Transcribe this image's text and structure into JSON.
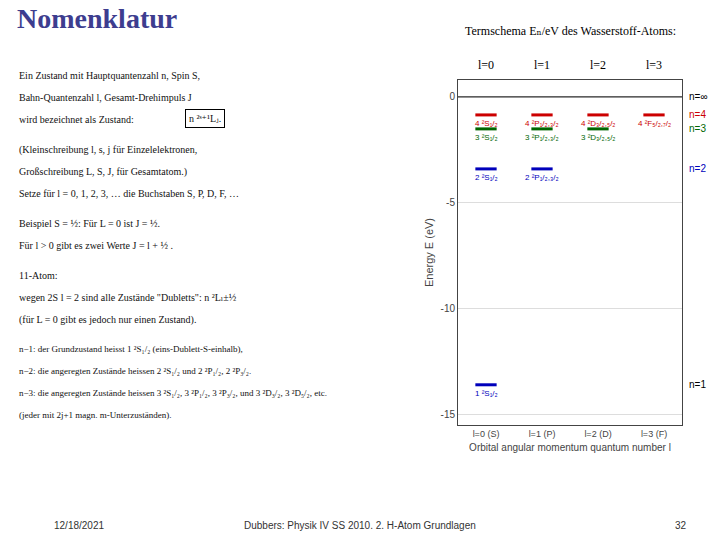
{
  "chart_data": {
    "type": "levels",
    "title": "Nomenklatur",
    "title_color": "#3d3d8f",
    "subtitle": "Termschema Eₙ/eV des Wasserstoff-Atoms:",
    "column_labels": [
      "l=0",
      "l=1",
      "l=2",
      "l=3"
    ],
    "categories": [
      "l=0 (S)",
      "l=1 (P)",
      "l=2 (D)",
      "l=3 (F)"
    ],
    "xlabel": "Orbital angular momentum quantum number l",
    "ylabel": "Energy E (eV)",
    "ylim": [
      -15.5,
      0.8
    ],
    "yticks": [
      -15,
      -10,
      -5,
      0
    ],
    "grid": "y",
    "reference_lines": [
      0.0
    ],
    "n_labels": [
      {
        "label": "n=∞",
        "value": 0.0,
        "color": "#000000"
      },
      {
        "label": "n=4",
        "value": -0.85,
        "color": "#cc0000"
      },
      {
        "label": "n=3",
        "value": -1.51,
        "color": "#006600"
      },
      {
        "label": "n=2",
        "value": -3.4,
        "color": "#0000bb"
      },
      {
        "label": "n=1",
        "value": -13.6,
        "color": "#000000"
      }
    ],
    "series": [
      {
        "color": "#cc0000",
        "values": [
          -0.85,
          -0.85,
          -0.85,
          -0.85
        ],
        "value_labels": [
          "4 ²S₁/₂",
          "4 ²P₁/₂,₃/₂",
          "4 ²D₃/₂,₅/₂",
          "4 ²F₅/₂,₇/₂"
        ]
      },
      {
        "color": "#006600",
        "values": [
          -1.51,
          -1.51,
          -1.51,
          null
        ],
        "value_labels": [
          "3 ²S₁/₂",
          "3 ²P₁/₂,₃/₂",
          "3 ²D₃/₂,₅/₂",
          null
        ]
      },
      {
        "color": "#0000bb",
        "values": [
          -3.4,
          -3.4,
          null,
          null
        ],
        "value_labels": [
          "2 ²S₁/₂",
          "2 ²P₁/₂,₃/₂",
          null,
          null
        ]
      },
      {
        "color": "#0000bb",
        "values": [
          -13.6,
          null,
          null,
          null
        ],
        "value_labels": [
          "1 ²S₁/₂",
          null,
          null,
          null
        ]
      }
    ],
    "text_blocks": [
      [
        "Ein Zustand mit Hauptquantenzahl n, Spin S,",
        "Bahn-Quantenzahl l, Gesamt-Drehimpuls J",
        "wird bezeichnet als Zustand:"
      ],
      [
        "(Kleinschreibung l, s, j für Einzelelektronen,",
        "Großschreibung L, S, J, für Gesamtatom.)",
        "Setze für l = 0, 1, 2, 3, … die Buchstaben S, P, D, F, …"
      ],
      [
        "Beispiel S = ½: Für L = 0 ist J = ½.",
        "Für l > 0 gibt es zwei Werte J = l + ½ ."
      ],
      [
        "11-Atom:",
        "wegen 2S l = 2 sind alle Zustände \"Dubletts\": n ²Lₗ±½",
        "(für L = 0 gibt es jedoch nur einen Zustand)."
      ],
      [
        "n−1: der Grundzustand heisst 1 ²S₁/₂ (eins-Dublett-S-einhalb),",
        "n−2: die angeregten Zustände heissen 2 ²S₁/₂ und 2 ²P₁/₂, 2 ²P₃/₂.",
        "n−3: die angeregten Zustände heissen 3 ²S₁/₂, 3 ²P₁/₂, 3 ²P₃/₂, und 3 ²D₃/₂, 3 ²D₅/₂, etc.",
        "(jeder mit 2j+1 magn. m-Unterzuständen)."
      ]
    ],
    "notation_box": "n ²ˢ⁺¹Lⱼ.",
    "footer": [
      "12/18/2021",
      "Dubbers: Physik IV SS 2010. 2. H-Atom Grundlagen",
      "32"
    ]
  }
}
